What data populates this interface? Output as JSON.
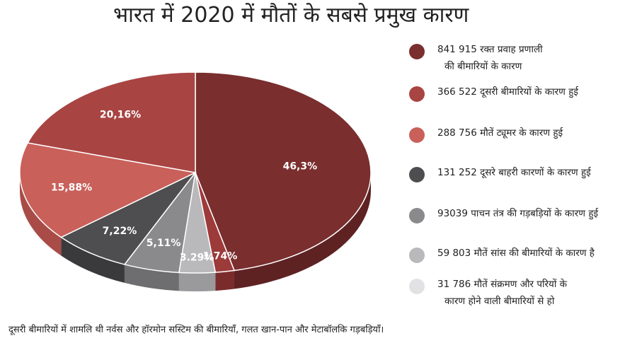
{
  "title": "भारत में 2020 में मौतों के सबसे प्रमुख कारण",
  "footnote": "दूसरी बीमारियों में शामलि थी नर्वस और हॉरमोन सस्टिम की बीमारियाँ, गलत खान-पान और मेटाबॉलकि गड़बड़ियाँ।",
  "legend": [
    {
      "line1": "841 915 रक्त प्रवाह प्रणाली",
      "line2": "की बीमारियों के कारण",
      "color": "#7a2e2e"
    },
    {
      "line1": "366 522 दूसरी बीमारियों के कारण हुई",
      "line2": "",
      "color": "#a84442"
    },
    {
      "line1": "288 756 मौतें ट्यूमर के कारण हुई",
      "line2": "",
      "color": "#c9605a"
    },
    {
      "line1": "131 252 दूसरे बाहरी कारणों के कारण हुई",
      "line2": "",
      "color": "#4e4e50"
    },
    {
      "line1": "93039 पाचन तंत्र की गड़बड़ियों के कारण हुई",
      "line2": "",
      "color": "#8a8a8c"
    },
    {
      "line1": "59 803 मौतें सांस की बीमारियों के कारण है",
      "line2": "",
      "color": "#b9b9bb"
    },
    {
      "line1": "31 786 मौतें संक्रमण और परियों के",
      "line2": "कारण होने वाली बीमारियों से हो",
      "color": "#e2e2e4"
    }
  ],
  "chart_data": {
    "type": "pie",
    "title": "भारत में 2020 में मौतों के सबसे प्रमुख कारण",
    "slices": [
      {
        "label": "46,3%",
        "value": 46.3,
        "color": "#7a2e2e",
        "side": "#5e2222"
      },
      {
        "label": "1.74%",
        "value": 1.74,
        "color": "#9c3b3a",
        "side": "#7a2c2c"
      },
      {
        "label": "3.29%",
        "value": 3.29,
        "color": "#b9b9bb",
        "side": "#9a9a9c"
      },
      {
        "label": "5,11%",
        "value": 5.11,
        "color": "#8a8a8c",
        "side": "#6e6e70"
      },
      {
        "label": "7,22%",
        "value": 7.22,
        "color": "#4e4e50",
        "side": "#3a3a3c"
      },
      {
        "label": "15,88%",
        "value": 15.88,
        "color": "#c9605a",
        "side": "#a94c47"
      },
      {
        "label": "20,16%",
        "value": 20.16,
        "color": "#a84442",
        "side": "#853434"
      }
    ],
    "legend_position": "right"
  }
}
